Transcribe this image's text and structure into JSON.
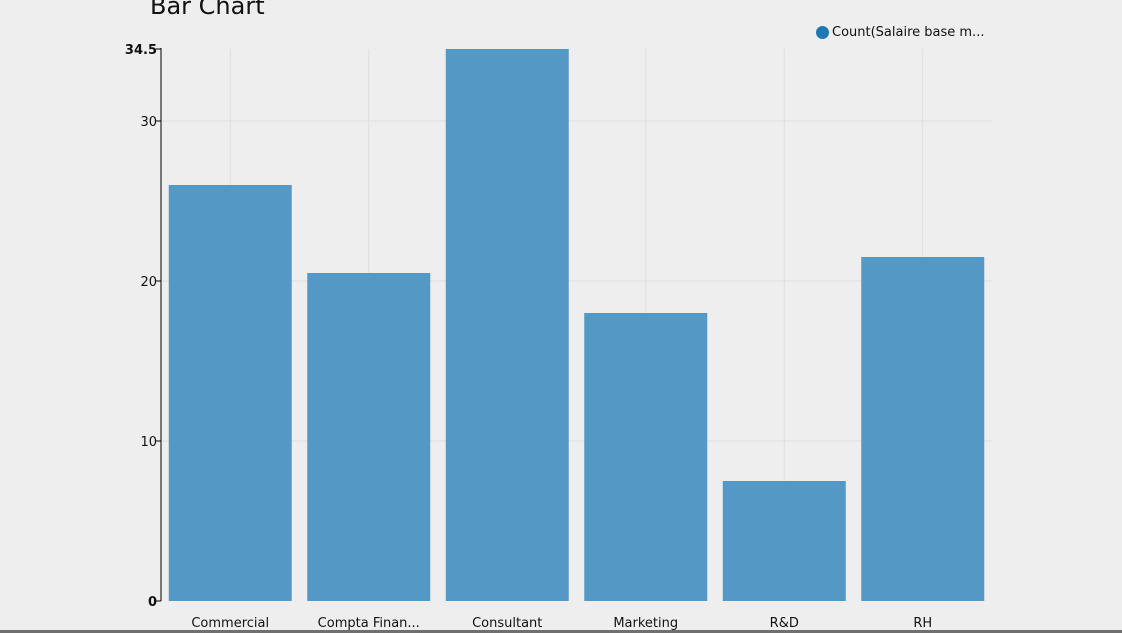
{
  "chart_data": {
    "type": "bar",
    "title": "Bar Chart",
    "categories": [
      "Commercial",
      "Compta Finan...",
      "Consultant",
      "Marketing",
      "R&D",
      "RH"
    ],
    "series": [
      {
        "name": "Count(Salaire base m...",
        "values": [
          26,
          20.5,
          34.5,
          18,
          7.5,
          21.5
        ]
      }
    ],
    "xlabel": "",
    "ylabel": "",
    "ylim": [
      0,
      34.5
    ],
    "yticks": [
      0,
      10,
      20,
      30,
      34.5
    ],
    "ytick_labels": [
      "0",
      "10",
      "20",
      "30",
      "34.5"
    ],
    "grid": true,
    "legend_position": "top-right",
    "colors": {
      "bar": "#5498c6",
      "legend_marker": "#1f77b4",
      "background": "#eeeeee",
      "grid": "#dddddd",
      "axis": "#000000"
    }
  }
}
